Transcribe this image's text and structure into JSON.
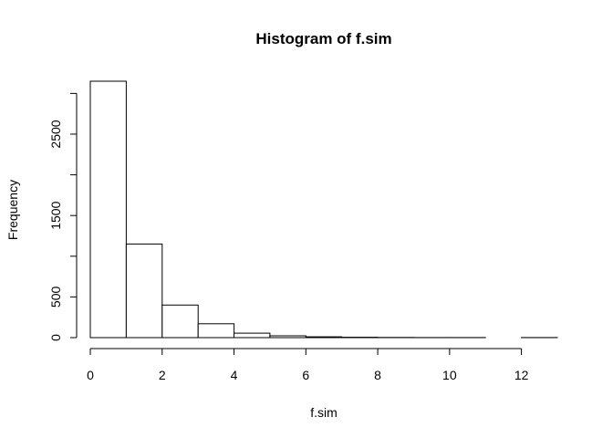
{
  "chart_data": {
    "type": "bar",
    "title": "Histogram of f.sim",
    "xlabel": "f.sim",
    "ylabel": "Frequency",
    "bins": [
      {
        "from": 0,
        "to": 1,
        "count": 3150
      },
      {
        "from": 1,
        "to": 2,
        "count": 1150
      },
      {
        "from": 2,
        "to": 3,
        "count": 400
      },
      {
        "from": 3,
        "to": 4,
        "count": 170
      },
      {
        "from": 4,
        "to": 5,
        "count": 55
      },
      {
        "from": 5,
        "to": 6,
        "count": 22
      },
      {
        "from": 6,
        "to": 7,
        "count": 10
      },
      {
        "from": 7,
        "to": 8,
        "count": 4
      },
      {
        "from": 8,
        "to": 9,
        "count": 2
      },
      {
        "from": 9,
        "to": 10,
        "count": 1
      },
      {
        "from": 10,
        "to": 11,
        "count": 1
      },
      {
        "from": 11,
        "to": 12,
        "count": 0
      },
      {
        "from": 12,
        "to": 13,
        "count": 1
      }
    ],
    "xlim": [
      0,
      13
    ],
    "ylim": [
      0,
      3150
    ],
    "x_ticks": [
      0,
      2,
      4,
      6,
      8,
      10,
      12
    ],
    "y_ticks": [
      0,
      500,
      1500,
      2500
    ],
    "y_tick_marks": [
      0,
      500,
      1000,
      1500,
      2000,
      2500,
      3000
    ],
    "grid": false,
    "legend": "none",
    "bar_fill": "#ffffff",
    "bar_stroke": "#000000"
  }
}
